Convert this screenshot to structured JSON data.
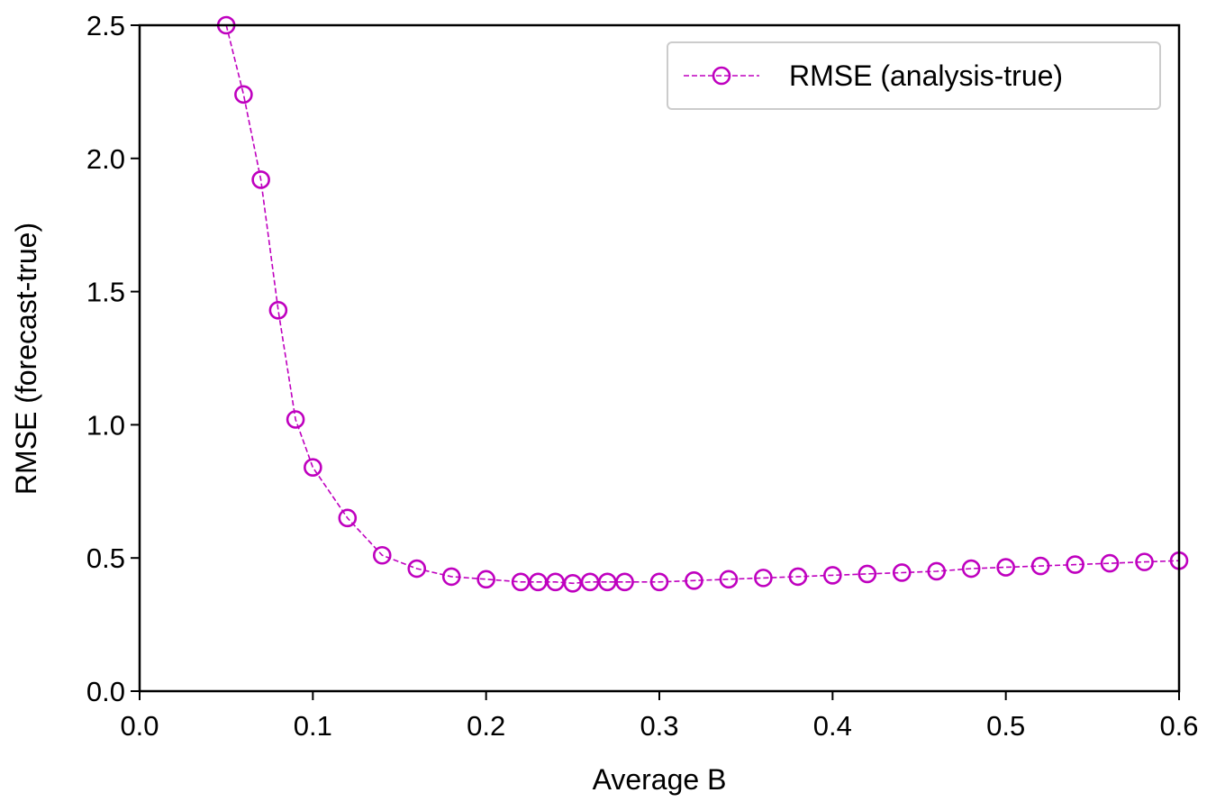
{
  "chart_data": {
    "type": "line",
    "xlabel": "Average B",
    "ylabel": "RMSE (forecast-true)",
    "xlim": [
      0.0,
      0.6
    ],
    "ylim": [
      0.0,
      2.5
    ],
    "x_ticks": [
      "0.0",
      "0.1",
      "0.2",
      "0.3",
      "0.4",
      "0.5",
      "0.6"
    ],
    "y_ticks": [
      "0.0",
      "0.5",
      "1.0",
      "1.5",
      "2.0",
      "2.5"
    ],
    "grid": false,
    "legend_position": "top-right",
    "series": [
      {
        "name": "RMSE (analysis-true)",
        "color": "#bf00bf",
        "line_style": "dashed",
        "marker": "open-circle",
        "x": [
          0.05,
          0.06,
          0.07,
          0.08,
          0.09,
          0.1,
          0.12,
          0.14,
          0.16,
          0.18,
          0.2,
          0.22,
          0.23,
          0.24,
          0.25,
          0.26,
          0.27,
          0.28,
          0.3,
          0.32,
          0.34,
          0.36,
          0.38,
          0.4,
          0.42,
          0.44,
          0.46,
          0.48,
          0.5,
          0.52,
          0.54,
          0.56,
          0.58,
          0.6
        ],
        "y": [
          2.5,
          2.24,
          1.92,
          1.43,
          1.02,
          0.84,
          0.65,
          0.51,
          0.46,
          0.43,
          0.42,
          0.41,
          0.41,
          0.41,
          0.405,
          0.41,
          0.41,
          0.41,
          0.41,
          0.415,
          0.42,
          0.425,
          0.43,
          0.435,
          0.44,
          0.445,
          0.45,
          0.46,
          0.465,
          0.47,
          0.475,
          0.48,
          0.485,
          0.49
        ]
      }
    ]
  }
}
